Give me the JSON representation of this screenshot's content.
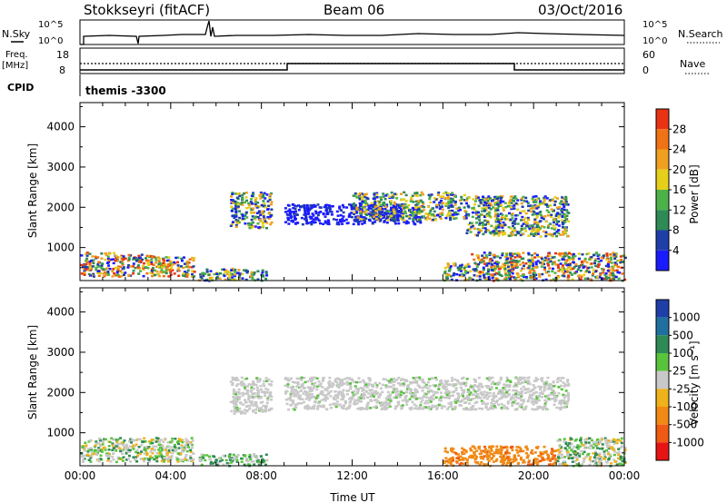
{
  "header": {
    "station": "Stokkseyri (fitACF)",
    "beam": "Beam 06",
    "date": "03/Oct/2016"
  },
  "strips": {
    "nsky_label": "N.Sky",
    "nsky_top": "10^5",
    "nsky_bottom": "10^0",
    "nsearch_label": "N.Search",
    "nsearch_top": "10^5",
    "nsearch_bottom": "10^0",
    "freq_label_1": "Freq.",
    "freq_label_2": "[MHz]",
    "freq_top": "18",
    "freq_bottom": "8",
    "nave_label": "Nave",
    "nave_top": "60",
    "nave_bottom": "0",
    "cpid_label": "CPID",
    "cpid_text": "themis -3300"
  },
  "axes": {
    "ylabel": "Slant Range [km]",
    "xlabel": "Time UT",
    "y_ticks": [
      "1000",
      "2000",
      "3000",
      "4000"
    ],
    "x_ticks": [
      "00:00",
      "04:00",
      "08:00",
      "12:00",
      "16:00",
      "20:00",
      "00:00"
    ]
  },
  "colorbars": {
    "power": {
      "label": "Power [dB]",
      "ticks": [
        "4",
        "8",
        "12",
        "16",
        "20",
        "24",
        "28"
      ],
      "colors": [
        "#1a1aff",
        "#1f3fa8",
        "#2f8a55",
        "#4cb247",
        "#e6cf1a",
        "#f0a020",
        "#ef7214",
        "#e83314"
      ]
    },
    "velocity": {
      "label": "Velocity [m s⁻¹]",
      "ticks": [
        "1000",
        "500",
        "100",
        "25",
        "-25",
        "-100",
        "-500",
        "-1000"
      ],
      "colors": [
        "#1f3fa8",
        "#1f6fa0",
        "#2f8a55",
        "#58c43c",
        "#c8c8c8",
        "#efb21a",
        "#f08a14",
        "#ef5a14",
        "#e81414"
      ]
    }
  },
  "chart_data": [
    {
      "type": "heatmap",
      "title": "Power",
      "x_range_hours": [
        0,
        24
      ],
      "y_range_km": [
        180,
        4600
      ],
      "regions": [
        {
          "x": [
            0.0,
            1.6
          ],
          "y": [
            300,
            900
          ],
          "level": "mixed-high"
        },
        {
          "x": [
            1.6,
            3.6
          ],
          "y": [
            300,
            850
          ],
          "level": "mixed-high"
        },
        {
          "x": [
            3.6,
            5.0
          ],
          "y": [
            300,
            800
          ],
          "level": "mixed-high"
        },
        {
          "x": [
            5.2,
            8.2
          ],
          "y": [
            200,
            500
          ],
          "level": "mixed-mid"
        },
        {
          "x": [
            6.6,
            8.4
          ],
          "y": [
            1500,
            2400
          ],
          "level": "mixed-mid"
        },
        {
          "x": [
            9.0,
            15.0
          ],
          "y": [
            1600,
            2100
          ],
          "level": "low"
        },
        {
          "x": [
            12.0,
            17.0
          ],
          "y": [
            1700,
            2400
          ],
          "level": "mixed-mid"
        },
        {
          "x": [
            16.0,
            17.2
          ],
          "y": [
            200,
            650
          ],
          "level": "mixed-mid"
        },
        {
          "x": [
            17.2,
            24.0
          ],
          "y": [
            200,
            900
          ],
          "level": "mixed-high"
        },
        {
          "x": [
            17.0,
            21.5
          ],
          "y": [
            1300,
            2300
          ],
          "level": "mixed-mid"
        }
      ]
    },
    {
      "type": "heatmap",
      "title": "Velocity",
      "x_range_hours": [
        0,
        24
      ],
      "y_range_km": [
        180,
        4600
      ],
      "regions": [
        {
          "x": [
            0.0,
            5.0
          ],
          "y": [
            300,
            900
          ],
          "value": "-25 to 100"
        },
        {
          "x": [
            5.2,
            8.2
          ],
          "y": [
            200,
            500
          ],
          "value": "25 to 500"
        },
        {
          "x": [
            6.6,
            8.4
          ],
          "y": [
            1500,
            2400
          ],
          "value": "-25 to 25"
        },
        {
          "x": [
            9.0,
            21.5
          ],
          "y": [
            1600,
            2400
          ],
          "value": "-25 to 25"
        },
        {
          "x": [
            16.0,
            17.2
          ],
          "y": [
            200,
            650
          ],
          "value": "-500 to -100"
        },
        {
          "x": [
            17.2,
            21.0
          ],
          "y": [
            200,
            700
          ],
          "value": "-500 to -100"
        },
        {
          "x": [
            21.0,
            24.0
          ],
          "y": [
            200,
            900
          ],
          "value": "-25 to 500"
        }
      ]
    }
  ]
}
